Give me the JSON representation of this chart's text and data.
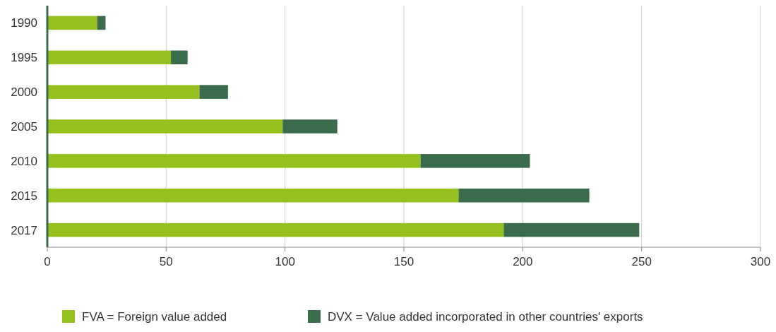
{
  "chart_data": {
    "type": "bar",
    "orientation": "horizontal",
    "stacked": true,
    "categories": [
      "1990",
      "1995",
      "2000",
      "2005",
      "2010",
      "2015",
      "2017"
    ],
    "series": [
      {
        "name": "FVA = Foreign value added",
        "color": "#95c11f",
        "values": [
          21,
          52,
          64,
          99,
          157,
          173,
          192
        ]
      },
      {
        "name": "DVX = Value added incorporated in other countries' exports",
        "color": "#3a6b4a",
        "values": [
          3.5,
          7,
          12,
          23,
          46,
          55,
          57
        ]
      }
    ],
    "xlim": [
      0,
      300
    ],
    "xticks": [
      0,
      50,
      100,
      150,
      200,
      250,
      300
    ],
    "grid": "x",
    "legend": "bottom"
  }
}
